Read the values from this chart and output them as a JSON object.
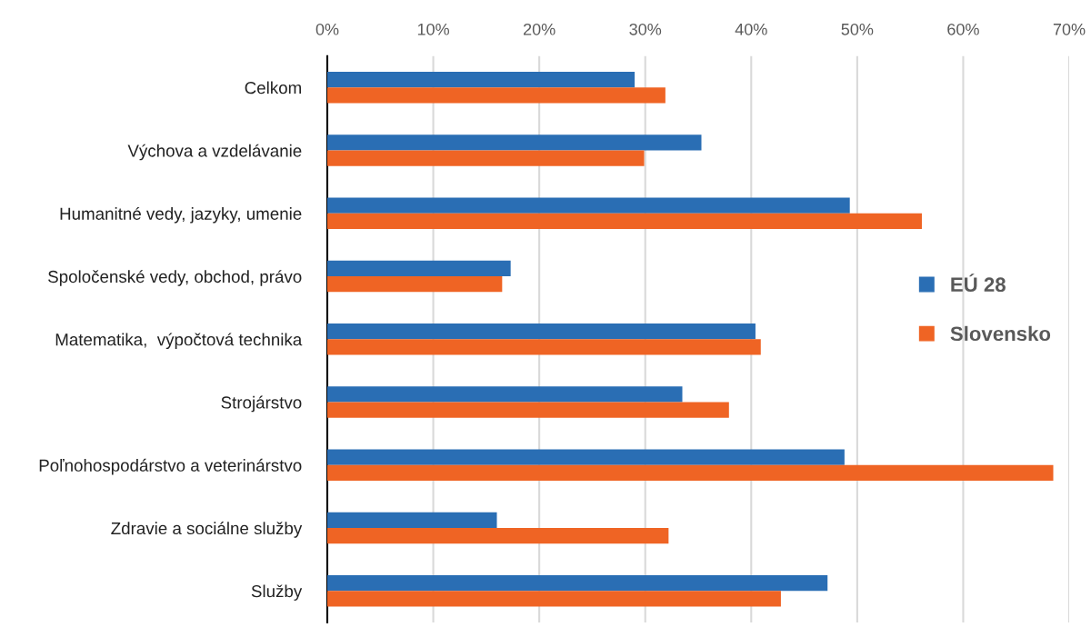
{
  "chart_data": {
    "type": "bar",
    "orientation": "horizontal",
    "categories": [
      "Celkom",
      "Výchova a vzdelávanie",
      "Humanitné vedy, jazyky, umenie",
      "Spoločenské vedy, obchod, právo",
      "Matematika,  výpočtová technika",
      "Strojárstvo",
      "Poľnohospodárstvo a veterinárstvo",
      "Zdravie a sociálne služby",
      "Služby"
    ],
    "series": [
      {
        "name": "EÚ 28",
        "color": "#2a6eb4",
        "values": [
          29.0,
          35.3,
          49.3,
          17.3,
          40.4,
          33.5,
          48.8,
          16.0,
          47.2
        ]
      },
      {
        "name": "Slovensko",
        "color": "#ef6424",
        "values": [
          31.9,
          29.9,
          56.1,
          16.5,
          40.9,
          37.9,
          68.5,
          32.2,
          42.8
        ]
      }
    ],
    "xlim": [
      0,
      70
    ],
    "xticks": [
      {
        "value": 0,
        "label": "0%"
      },
      {
        "value": 10,
        "label": "10%"
      },
      {
        "value": 20,
        "label": "20%"
      },
      {
        "value": 30,
        "label": "30%"
      },
      {
        "value": 40,
        "label": "40%"
      },
      {
        "value": 50,
        "label": "50%"
      },
      {
        "value": 60,
        "label": "60%"
      },
      {
        "value": 70,
        "label": "70%"
      }
    ],
    "grid": "x",
    "legend": "right"
  }
}
